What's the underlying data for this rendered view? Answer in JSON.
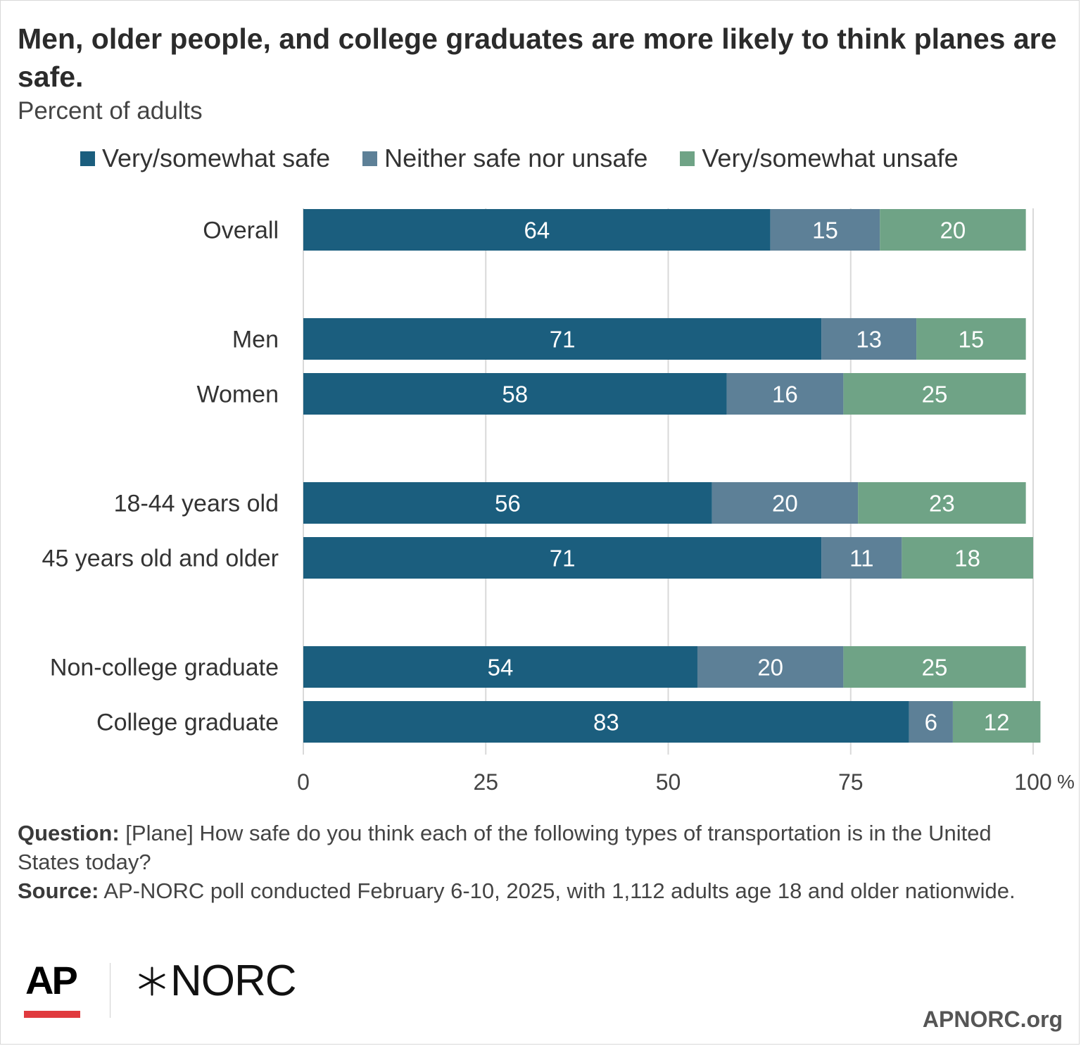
{
  "title": "Men, older people, and college graduates are more likely to think planes are safe.",
  "subtitle": "Percent of adults",
  "colors": {
    "safe": "#1b5e7e",
    "neither": "#5d8097",
    "unsafe": "#6fa386",
    "grid": "#d9d9d9",
    "axis_text": "#444444"
  },
  "chart_data": {
    "type": "bar",
    "orientation": "horizontal",
    "stacked": true,
    "categories": [
      "Overall",
      "Men",
      "Women",
      "18-44 years old",
      "45 years old and older",
      "Non-college graduate",
      "College graduate"
    ],
    "groups": [
      [
        "Overall"
      ],
      [
        "Men",
        "Women"
      ],
      [
        "18-44 years old",
        "45 years old and older"
      ],
      [
        "Non-college graduate",
        "College graduate"
      ]
    ],
    "series": [
      {
        "name": "Very/somewhat safe",
        "color_key": "safe",
        "values": [
          64,
          71,
          58,
          56,
          71,
          54,
          83
        ]
      },
      {
        "name": "Neither safe nor unsafe",
        "color_key": "neither",
        "values": [
          15,
          13,
          16,
          20,
          11,
          20,
          6
        ]
      },
      {
        "name": "Very/somewhat unsafe",
        "color_key": "unsafe",
        "values": [
          20,
          15,
          25,
          23,
          18,
          25,
          12
        ]
      }
    ],
    "xlim": [
      0,
      100
    ],
    "xticks": [
      "0",
      "25",
      "50",
      "75",
      "100"
    ],
    "x_unit": "%",
    "grid": true,
    "legend_position": "top"
  },
  "notes": {
    "question_label": "Question:",
    "question_text": " [Plane] How safe do you think each of the following types of transportation is in the United States today?",
    "source_label": "Source:",
    "source_text": " AP-NORC poll conducted February 6-10, 2025, with 1,112 adults age 18 and older nationwide."
  },
  "logos": {
    "ap": "AP",
    "norc": "NORC"
  },
  "site": "APNORC.org"
}
